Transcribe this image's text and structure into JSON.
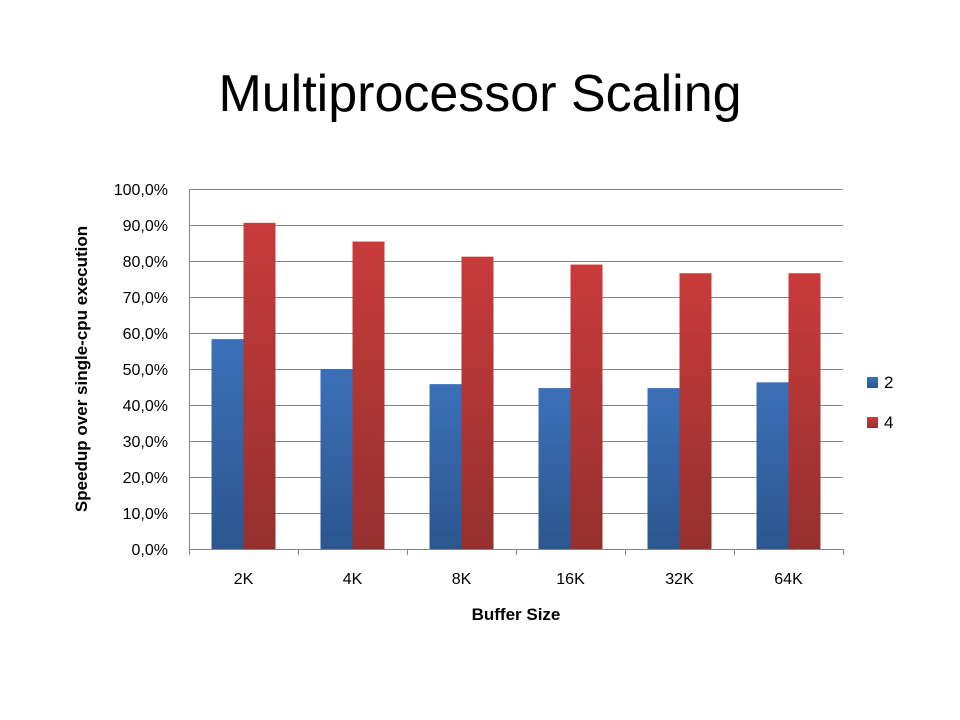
{
  "slide": {
    "title": "Multiprocessor Scaling"
  },
  "chart_data": {
    "type": "bar",
    "title": "",
    "xlabel": "Buffer Size",
    "ylabel": "Speedup over single-cpu execution",
    "categories": [
      "2K",
      "4K",
      "8K",
      "16K",
      "32K",
      "64K"
    ],
    "ylim": [
      0,
      100
    ],
    "yticks": [
      0,
      10,
      20,
      30,
      40,
      50,
      60,
      70,
      80,
      90,
      100
    ],
    "ytick_labels": [
      "0,0%",
      "10,0%",
      "20,0%",
      "30,0%",
      "40,0%",
      "50,0%",
      "60,0%",
      "70,0%",
      "80,0%",
      "90,0%",
      "100,0%"
    ],
    "grid": true,
    "legend_position": "right",
    "series": [
      {
        "name": "2",
        "color": "#3B70B8",
        "color_dark": "#2B568F",
        "values": [
          58.3,
          50.0,
          45.8,
          44.7,
          44.7,
          46.3
        ]
      },
      {
        "name": "4",
        "color": "#C83B3A",
        "color_dark": "#95302F",
        "values": [
          90.6,
          85.4,
          81.2,
          79.0,
          76.6,
          76.6
        ]
      }
    ]
  }
}
